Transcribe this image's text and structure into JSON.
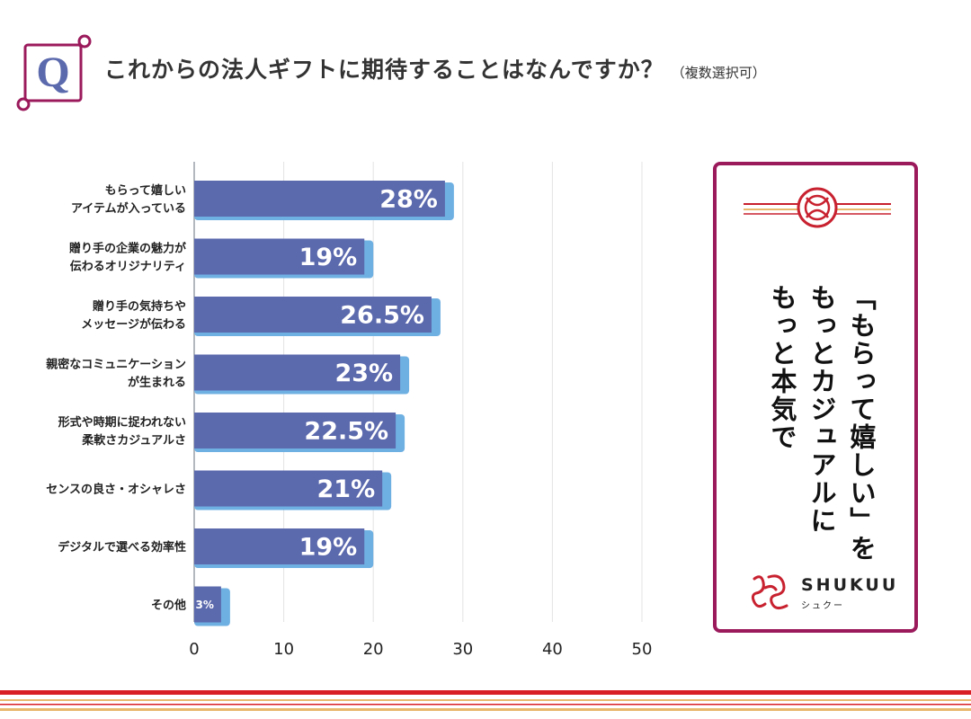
{
  "header": {
    "q_letter": "Q",
    "title": "これからの法人ギフトに期待することはなんですか？",
    "subtitle": "（複数選択可）"
  },
  "chart_data": {
    "type": "bar",
    "orientation": "horizontal",
    "categories": [
      [
        "もらって嬉しい",
        "アイテムが入っている"
      ],
      [
        "贈り手の企業の魅力が",
        "伝わるオリジナリティ"
      ],
      [
        "贈り手の気持ちや",
        "メッセージが伝わる"
      ],
      [
        "親密なコミュニケーション",
        "が生まれる"
      ],
      [
        "形式や時期に捉われない",
        "柔軟さカジュアルさ"
      ],
      [
        "センスの良さ・オシャレさ"
      ],
      [
        "デジタルで選べる効率性"
      ],
      [
        "その他"
      ]
    ],
    "values": [
      28,
      19,
      26.5,
      23,
      22.5,
      21,
      19,
      3
    ],
    "value_labels": [
      "28%",
      "19%",
      "26.5%",
      "23%",
      "22.5%",
      "21%",
      "19%",
      "3%"
    ],
    "xticks": [
      "0",
      "10",
      "20",
      "30",
      "40",
      "50"
    ],
    "xlim": [
      0,
      50
    ],
    "grid": true,
    "title": "これからの法人ギフトに期待することはなんですか？",
    "bar_color": "#5b69ad",
    "bar_shadow_color": "#6fb0e2"
  },
  "card": {
    "line1": "「もらって嬉しい」を",
    "line2": "もっとカジュアルに",
    "line3": "もっと本気で",
    "accent": "#9b1a5c",
    "brand_name": "SHUKUU",
    "brand_kana": "シュクー"
  },
  "colors": {
    "accent": "#9b1a5c",
    "brand_red": "#c8212f",
    "q_blue": "#5b69ad",
    "footer_red": "#d91f26",
    "footer_gold": "#e8b86d"
  }
}
